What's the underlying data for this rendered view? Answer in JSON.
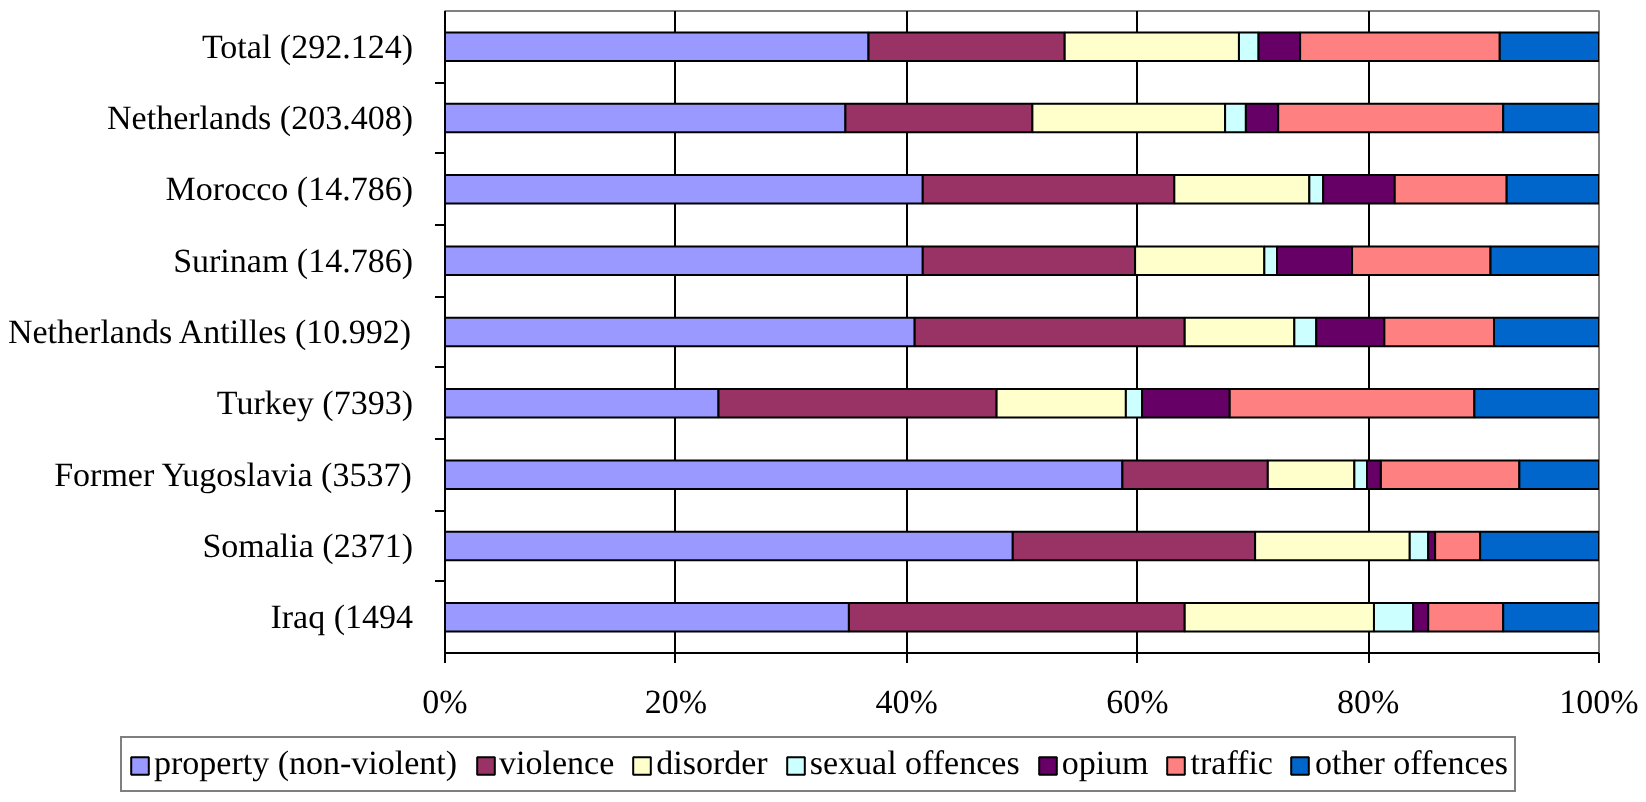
{
  "chart_data": {
    "type": "bar",
    "orientation": "horizontal",
    "stacked": true,
    "categories": [
      "Total (292.124)",
      "Netherlands (203.408)",
      "Morocco (14.786)",
      "Surinam (14.786)",
      "Netherlands Antilles (10.992)",
      "Turkey (7393)",
      "Former Yugoslavia (3537)",
      "Somalia (2371)",
      "Iraq (1494"
    ],
    "series": [
      {
        "name": "property (non-violent)",
        "color": "#9999ff",
        "values": [
          36.7,
          34.7,
          41.4,
          41.4,
          40.7,
          23.7,
          58.7,
          49.2,
          35.0
        ]
      },
      {
        "name": "violence",
        "color": "#993366",
        "values": [
          17.0,
          16.2,
          21.8,
          18.4,
          23.4,
          24.1,
          12.6,
          21.0,
          29.1
        ]
      },
      {
        "name": "disorder",
        "color": "#ffffcc",
        "values": [
          15.1,
          16.7,
          11.7,
          11.2,
          9.5,
          11.2,
          7.5,
          13.4,
          16.4
        ]
      },
      {
        "name": "sexual offences",
        "color": "#ccffff",
        "values": [
          1.7,
          1.8,
          1.2,
          1.1,
          1.9,
          1.4,
          1.1,
          1.6,
          3.4
        ]
      },
      {
        "name": "opium",
        "color": "#660066",
        "values": [
          3.6,
          2.8,
          6.2,
          6.5,
          5.9,
          7.6,
          1.2,
          0.6,
          1.3
        ]
      },
      {
        "name": "traffic",
        "color": "#ff8080",
        "values": [
          17.3,
          19.5,
          9.7,
          12.0,
          9.5,
          21.2,
          12.0,
          3.9,
          6.5
        ]
      },
      {
        "name": "other offences",
        "color": "#0066cc",
        "values": [
          8.6,
          8.3,
          8.0,
          9.4,
          9.1,
          10.8,
          6.9,
          10.3,
          8.3
        ]
      }
    ],
    "xlim": [
      0,
      100
    ],
    "xticks": [
      {
        "value": 0,
        "label": "0%"
      },
      {
        "value": 20,
        "label": "20%"
      },
      {
        "value": 40,
        "label": "40%"
      },
      {
        "value": 60,
        "label": "60%"
      },
      {
        "value": 80,
        "label": "80%"
      },
      {
        "value": 100,
        "label": "100%"
      }
    ],
    "grid": "x",
    "legend": "bottom"
  }
}
